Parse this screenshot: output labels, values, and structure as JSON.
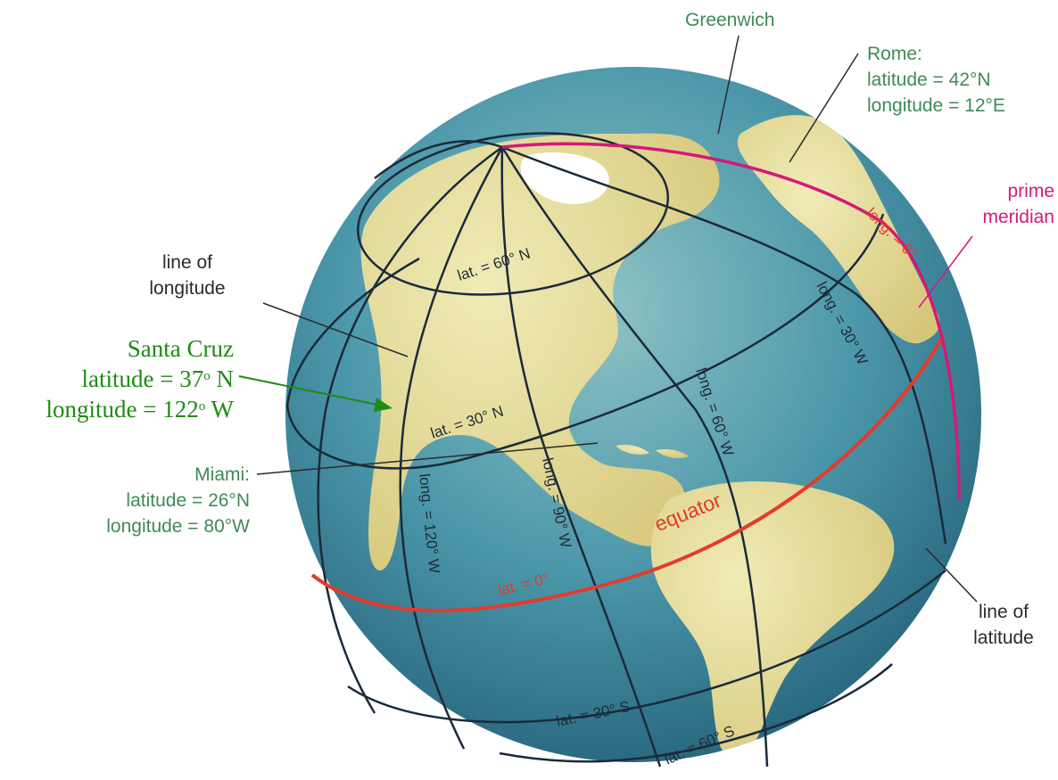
{
  "labels": {
    "greenwich": "Greenwich",
    "rome": {
      "title": "Rome:",
      "lat": "latitude = 42°N",
      "lon": "longitude = 12°E"
    },
    "prime_meridian": [
      "prime",
      "meridian"
    ],
    "line_of_longitude": [
      "line of",
      "longitude"
    ],
    "santa_cruz": {
      "title": "Santa Cruz",
      "lat_text": "latitude = 37",
      "lat_deg": "o",
      "lat_dir": " N",
      "lon_text": "longitude = 122",
      "lon_deg": "o",
      "lon_dir": " W"
    },
    "miami": {
      "title": "Miami:",
      "lat": "latitude = 26°N",
      "lon": "longitude = 80°W"
    },
    "line_of_latitude": [
      "line of",
      "latitude"
    ],
    "equator": "equator"
  },
  "globe_labels": {
    "lat60n": "lat. = 60° N",
    "lat30n": "lat. = 30° N",
    "lat0": "lat. = 0°",
    "lat30s": "lat. = 30° S",
    "lat60s": "lat. = 60° S",
    "long0": "long. = 0°",
    "long30w": "long. = 30° W",
    "long60w": "long. = 60° W",
    "long90w": "long. = 90° W",
    "long120w": "long. = 120° W"
  },
  "colors": {
    "ocean": "#4a93a8",
    "land": "#e3d98c",
    "grid": "#1b2a3a",
    "equator": "#e23b2c",
    "prime_meridian": "#d4197a",
    "label_green": "#3f8a57",
    "santa_cruz_green": "#1e8c12"
  }
}
